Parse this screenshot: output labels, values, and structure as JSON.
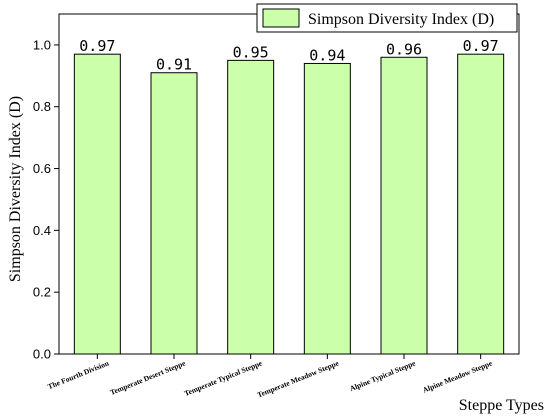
{
  "chart_data": {
    "type": "bar",
    "categories": [
      "The Fourth Division",
      "Temperate Desert Steppe",
      "Temperate Typical Steppe",
      "Temperate Meadow Steppe",
      "Alpine Typical Steppe",
      "Alpine Meadow Steppe"
    ],
    "series": [
      {
        "name": "Simpson Diversity Index (D)",
        "values": [
          0.97,
          0.91,
          0.95,
          0.94,
          0.96,
          0.97
        ],
        "labels": [
          "0.97",
          "0.91",
          "0.95",
          "0.94",
          "0.96",
          "0.97"
        ],
        "color": "#ccffaa"
      }
    ],
    "xlabel": "Steppe Types",
    "ylabel": "Simpson Diversity Index (D)",
    "ylim": [
      0,
      1.1
    ],
    "yticks": [
      "0.0",
      "0.2",
      "0.4",
      "0.6",
      "0.8",
      "1.0"
    ],
    "grid": false,
    "legend": "top-right"
  }
}
